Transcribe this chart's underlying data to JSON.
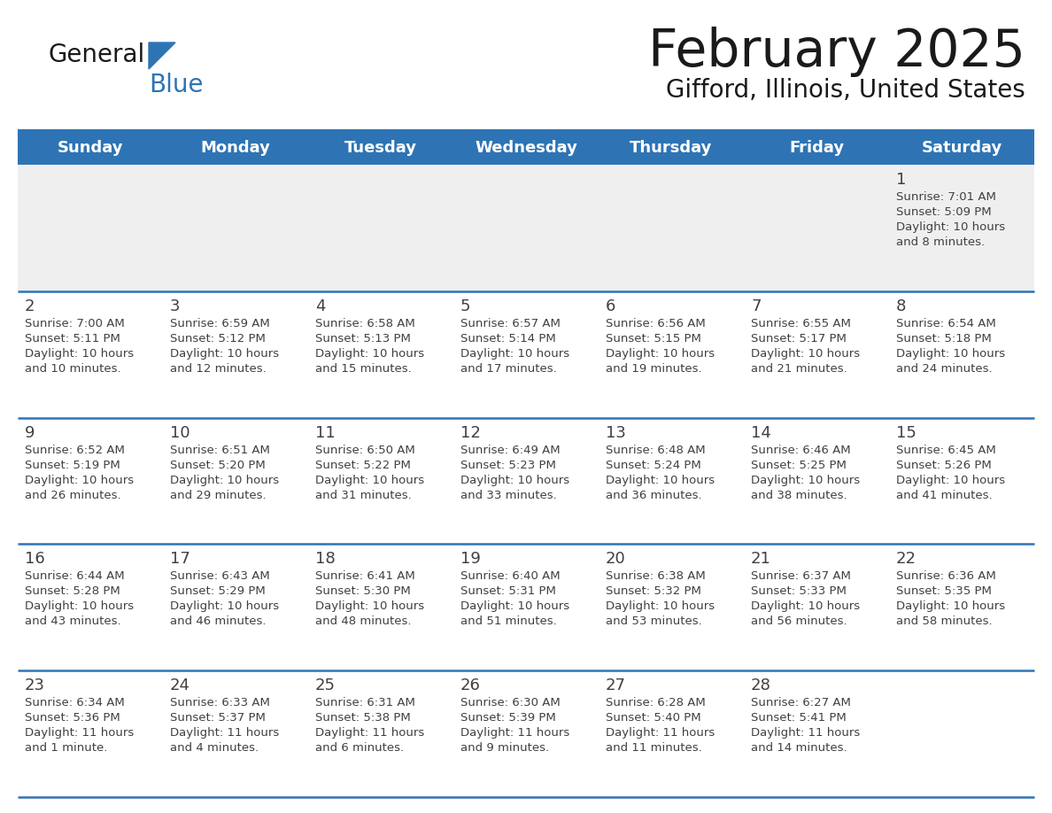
{
  "title": "February 2025",
  "subtitle": "Gifford, Illinois, United States",
  "days_of_week": [
    "Sunday",
    "Monday",
    "Tuesday",
    "Wednesday",
    "Thursday",
    "Friday",
    "Saturday"
  ],
  "header_bg": "#2E74B5",
  "header_text": "#FFFFFF",
  "cell_bg_light": "#EFEFEF",
  "cell_bg_white": "#FFFFFF",
  "divider_color": "#2E74B5",
  "text_color": "#404040",
  "title_color": "#1a1a1a",
  "logo_general_color": "#1a1a1a",
  "logo_blue_color": "#2E74B5",
  "logo_triangle_color": "#2E74B5",
  "calendar_data": [
    [
      null,
      null,
      null,
      null,
      null,
      null,
      {
        "day": 1,
        "sunrise": "7:01 AM",
        "sunset": "5:09 PM",
        "daylight": "10 hours and 8 minutes"
      }
    ],
    [
      {
        "day": 2,
        "sunrise": "7:00 AM",
        "sunset": "5:11 PM",
        "daylight": "10 hours and 10 minutes"
      },
      {
        "day": 3,
        "sunrise": "6:59 AM",
        "sunset": "5:12 PM",
        "daylight": "10 hours and 12 minutes"
      },
      {
        "day": 4,
        "sunrise": "6:58 AM",
        "sunset": "5:13 PM",
        "daylight": "10 hours and 15 minutes"
      },
      {
        "day": 5,
        "sunrise": "6:57 AM",
        "sunset": "5:14 PM",
        "daylight": "10 hours and 17 minutes"
      },
      {
        "day": 6,
        "sunrise": "6:56 AM",
        "sunset": "5:15 PM",
        "daylight": "10 hours and 19 minutes"
      },
      {
        "day": 7,
        "sunrise": "6:55 AM",
        "sunset": "5:17 PM",
        "daylight": "10 hours and 21 minutes"
      },
      {
        "day": 8,
        "sunrise": "6:54 AM",
        "sunset": "5:18 PM",
        "daylight": "10 hours and 24 minutes"
      }
    ],
    [
      {
        "day": 9,
        "sunrise": "6:52 AM",
        "sunset": "5:19 PM",
        "daylight": "10 hours and 26 minutes"
      },
      {
        "day": 10,
        "sunrise": "6:51 AM",
        "sunset": "5:20 PM",
        "daylight": "10 hours and 29 minutes"
      },
      {
        "day": 11,
        "sunrise": "6:50 AM",
        "sunset": "5:22 PM",
        "daylight": "10 hours and 31 minutes"
      },
      {
        "day": 12,
        "sunrise": "6:49 AM",
        "sunset": "5:23 PM",
        "daylight": "10 hours and 33 minutes"
      },
      {
        "day": 13,
        "sunrise": "6:48 AM",
        "sunset": "5:24 PM",
        "daylight": "10 hours and 36 minutes"
      },
      {
        "day": 14,
        "sunrise": "6:46 AM",
        "sunset": "5:25 PM",
        "daylight": "10 hours and 38 minutes"
      },
      {
        "day": 15,
        "sunrise": "6:45 AM",
        "sunset": "5:26 PM",
        "daylight": "10 hours and 41 minutes"
      }
    ],
    [
      {
        "day": 16,
        "sunrise": "6:44 AM",
        "sunset": "5:28 PM",
        "daylight": "10 hours and 43 minutes"
      },
      {
        "day": 17,
        "sunrise": "6:43 AM",
        "sunset": "5:29 PM",
        "daylight": "10 hours and 46 minutes"
      },
      {
        "day": 18,
        "sunrise": "6:41 AM",
        "sunset": "5:30 PM",
        "daylight": "10 hours and 48 minutes"
      },
      {
        "day": 19,
        "sunrise": "6:40 AM",
        "sunset": "5:31 PM",
        "daylight": "10 hours and 51 minutes"
      },
      {
        "day": 20,
        "sunrise": "6:38 AM",
        "sunset": "5:32 PM",
        "daylight": "10 hours and 53 minutes"
      },
      {
        "day": 21,
        "sunrise": "6:37 AM",
        "sunset": "5:33 PM",
        "daylight": "10 hours and 56 minutes"
      },
      {
        "day": 22,
        "sunrise": "6:36 AM",
        "sunset": "5:35 PM",
        "daylight": "10 hours and 58 minutes"
      }
    ],
    [
      {
        "day": 23,
        "sunrise": "6:34 AM",
        "sunset": "5:36 PM",
        "daylight": "11 hours and 1 minute"
      },
      {
        "day": 24,
        "sunrise": "6:33 AM",
        "sunset": "5:37 PM",
        "daylight": "11 hours and 4 minutes"
      },
      {
        "day": 25,
        "sunrise": "6:31 AM",
        "sunset": "5:38 PM",
        "daylight": "11 hours and 6 minutes"
      },
      {
        "day": 26,
        "sunrise": "6:30 AM",
        "sunset": "5:39 PM",
        "daylight": "11 hours and 9 minutes"
      },
      {
        "day": 27,
        "sunrise": "6:28 AM",
        "sunset": "5:40 PM",
        "daylight": "11 hours and 11 minutes"
      },
      {
        "day": 28,
        "sunrise": "6:27 AM",
        "sunset": "5:41 PM",
        "daylight": "11 hours and 14 minutes"
      },
      null
    ]
  ]
}
